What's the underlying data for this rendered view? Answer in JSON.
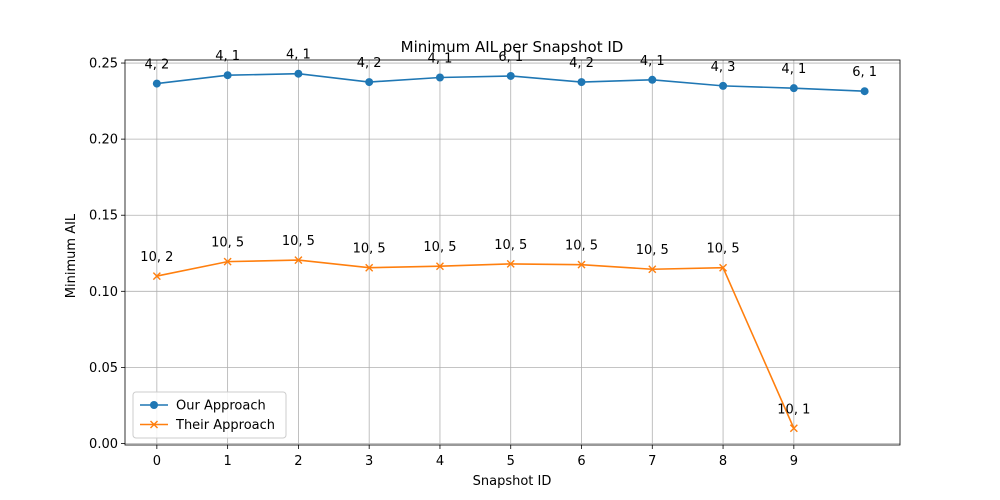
{
  "chart_data": {
    "type": "line",
    "title": "Minimum AIL per Snapshot ID",
    "xlabel": "Snapshot ID",
    "ylabel": "Minimum AIL",
    "x": [
      0,
      1,
      2,
      3,
      4,
      5,
      6,
      7,
      8,
      9,
      10
    ],
    "xticks": [
      "0",
      "1",
      "2",
      "3",
      "4",
      "5",
      "6",
      "7",
      "8",
      "9"
    ],
    "yticks": [
      "0.00",
      "0.05",
      "0.10",
      "0.15",
      "0.20",
      "0.25"
    ],
    "xlim": [
      -0.45,
      10.5
    ],
    "ylim": [
      -0.001,
      0.252
    ],
    "grid": true,
    "legend_position": "lower-left",
    "series": [
      {
        "name": "Our Approach",
        "color": "#1f77b4",
        "marker": "circle",
        "x": [
          0,
          1,
          2,
          3,
          4,
          5,
          6,
          7,
          8,
          9,
          10
        ],
        "values": [
          0.2365,
          0.242,
          0.243,
          0.2375,
          0.2405,
          0.2415,
          0.2375,
          0.239,
          0.235,
          0.2335,
          0.2315
        ],
        "labels": [
          "4, 2",
          "4, 1",
          "4, 1",
          "4, 2",
          "4, 1",
          "6, 1",
          "4, 2",
          "4, 1",
          "4, 3",
          "4, 1",
          "6, 1"
        ]
      },
      {
        "name": "Their Approach",
        "color": "#ff7f0e",
        "marker": "x",
        "x": [
          0,
          1,
          2,
          3,
          4,
          5,
          6,
          7,
          8,
          9
        ],
        "values": [
          0.11,
          0.1195,
          0.1205,
          0.1155,
          0.1165,
          0.118,
          0.1175,
          0.1145,
          0.1155,
          0.01
        ],
        "labels": [
          "10, 2",
          "10, 5",
          "10, 5",
          "10, 5",
          "10, 5",
          "10, 5",
          "10, 5",
          "10, 5",
          "10, 5",
          "10, 1"
        ]
      }
    ]
  }
}
